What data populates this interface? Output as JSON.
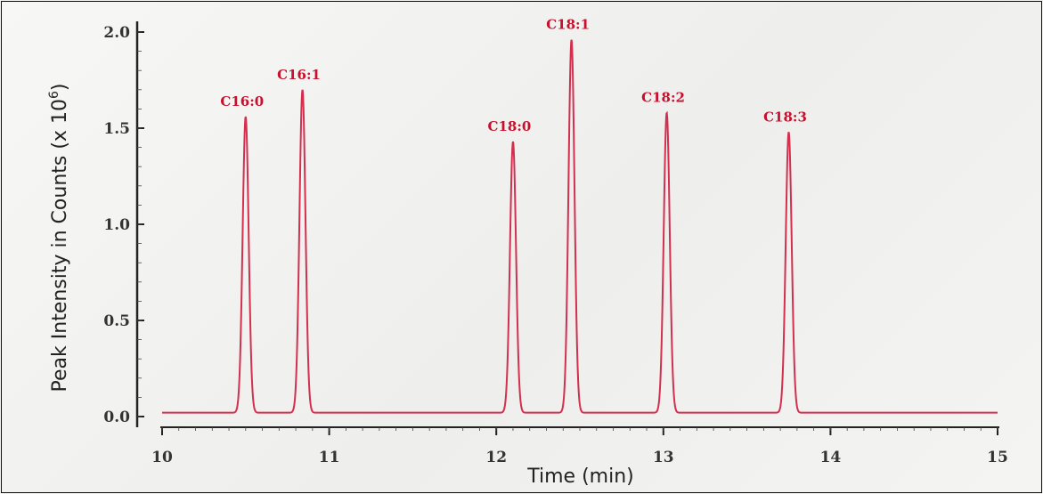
{
  "chart_data": {
    "type": "line",
    "xlabel": "Time (min)",
    "ylabel": "Peak Intensity in Counts (x 10",
    "ylabel_exp": "6",
    "ylabel_close": ")",
    "xlim": [
      10,
      15
    ],
    "ylim": [
      0,
      2.0
    ],
    "x_ticks": [
      10,
      11,
      12,
      13,
      14,
      15
    ],
    "y_ticks": [
      0.0,
      0.5,
      1.0,
      1.5,
      2.0
    ],
    "y_tick_labels": [
      "0.0",
      "0.5",
      "1.0",
      "1.5",
      "2.0"
    ],
    "baseline": 0.02,
    "grid": false,
    "line_color": "#d32f4f",
    "label_color": "#c8102e",
    "series": [
      {
        "peaks": [
          {
            "label": "C16:0",
            "x": 10.5,
            "y": 1.56
          },
          {
            "label": "C16:1",
            "x": 10.84,
            "y": 1.7
          },
          {
            "label": "C18:0",
            "x": 12.1,
            "y": 1.43
          },
          {
            "label": "C18:1",
            "x": 12.45,
            "y": 1.96
          },
          {
            "label": "C18:2",
            "x": 13.02,
            "y": 1.58
          },
          {
            "label": "C18:3",
            "x": 13.75,
            "y": 1.48
          }
        ]
      }
    ]
  }
}
